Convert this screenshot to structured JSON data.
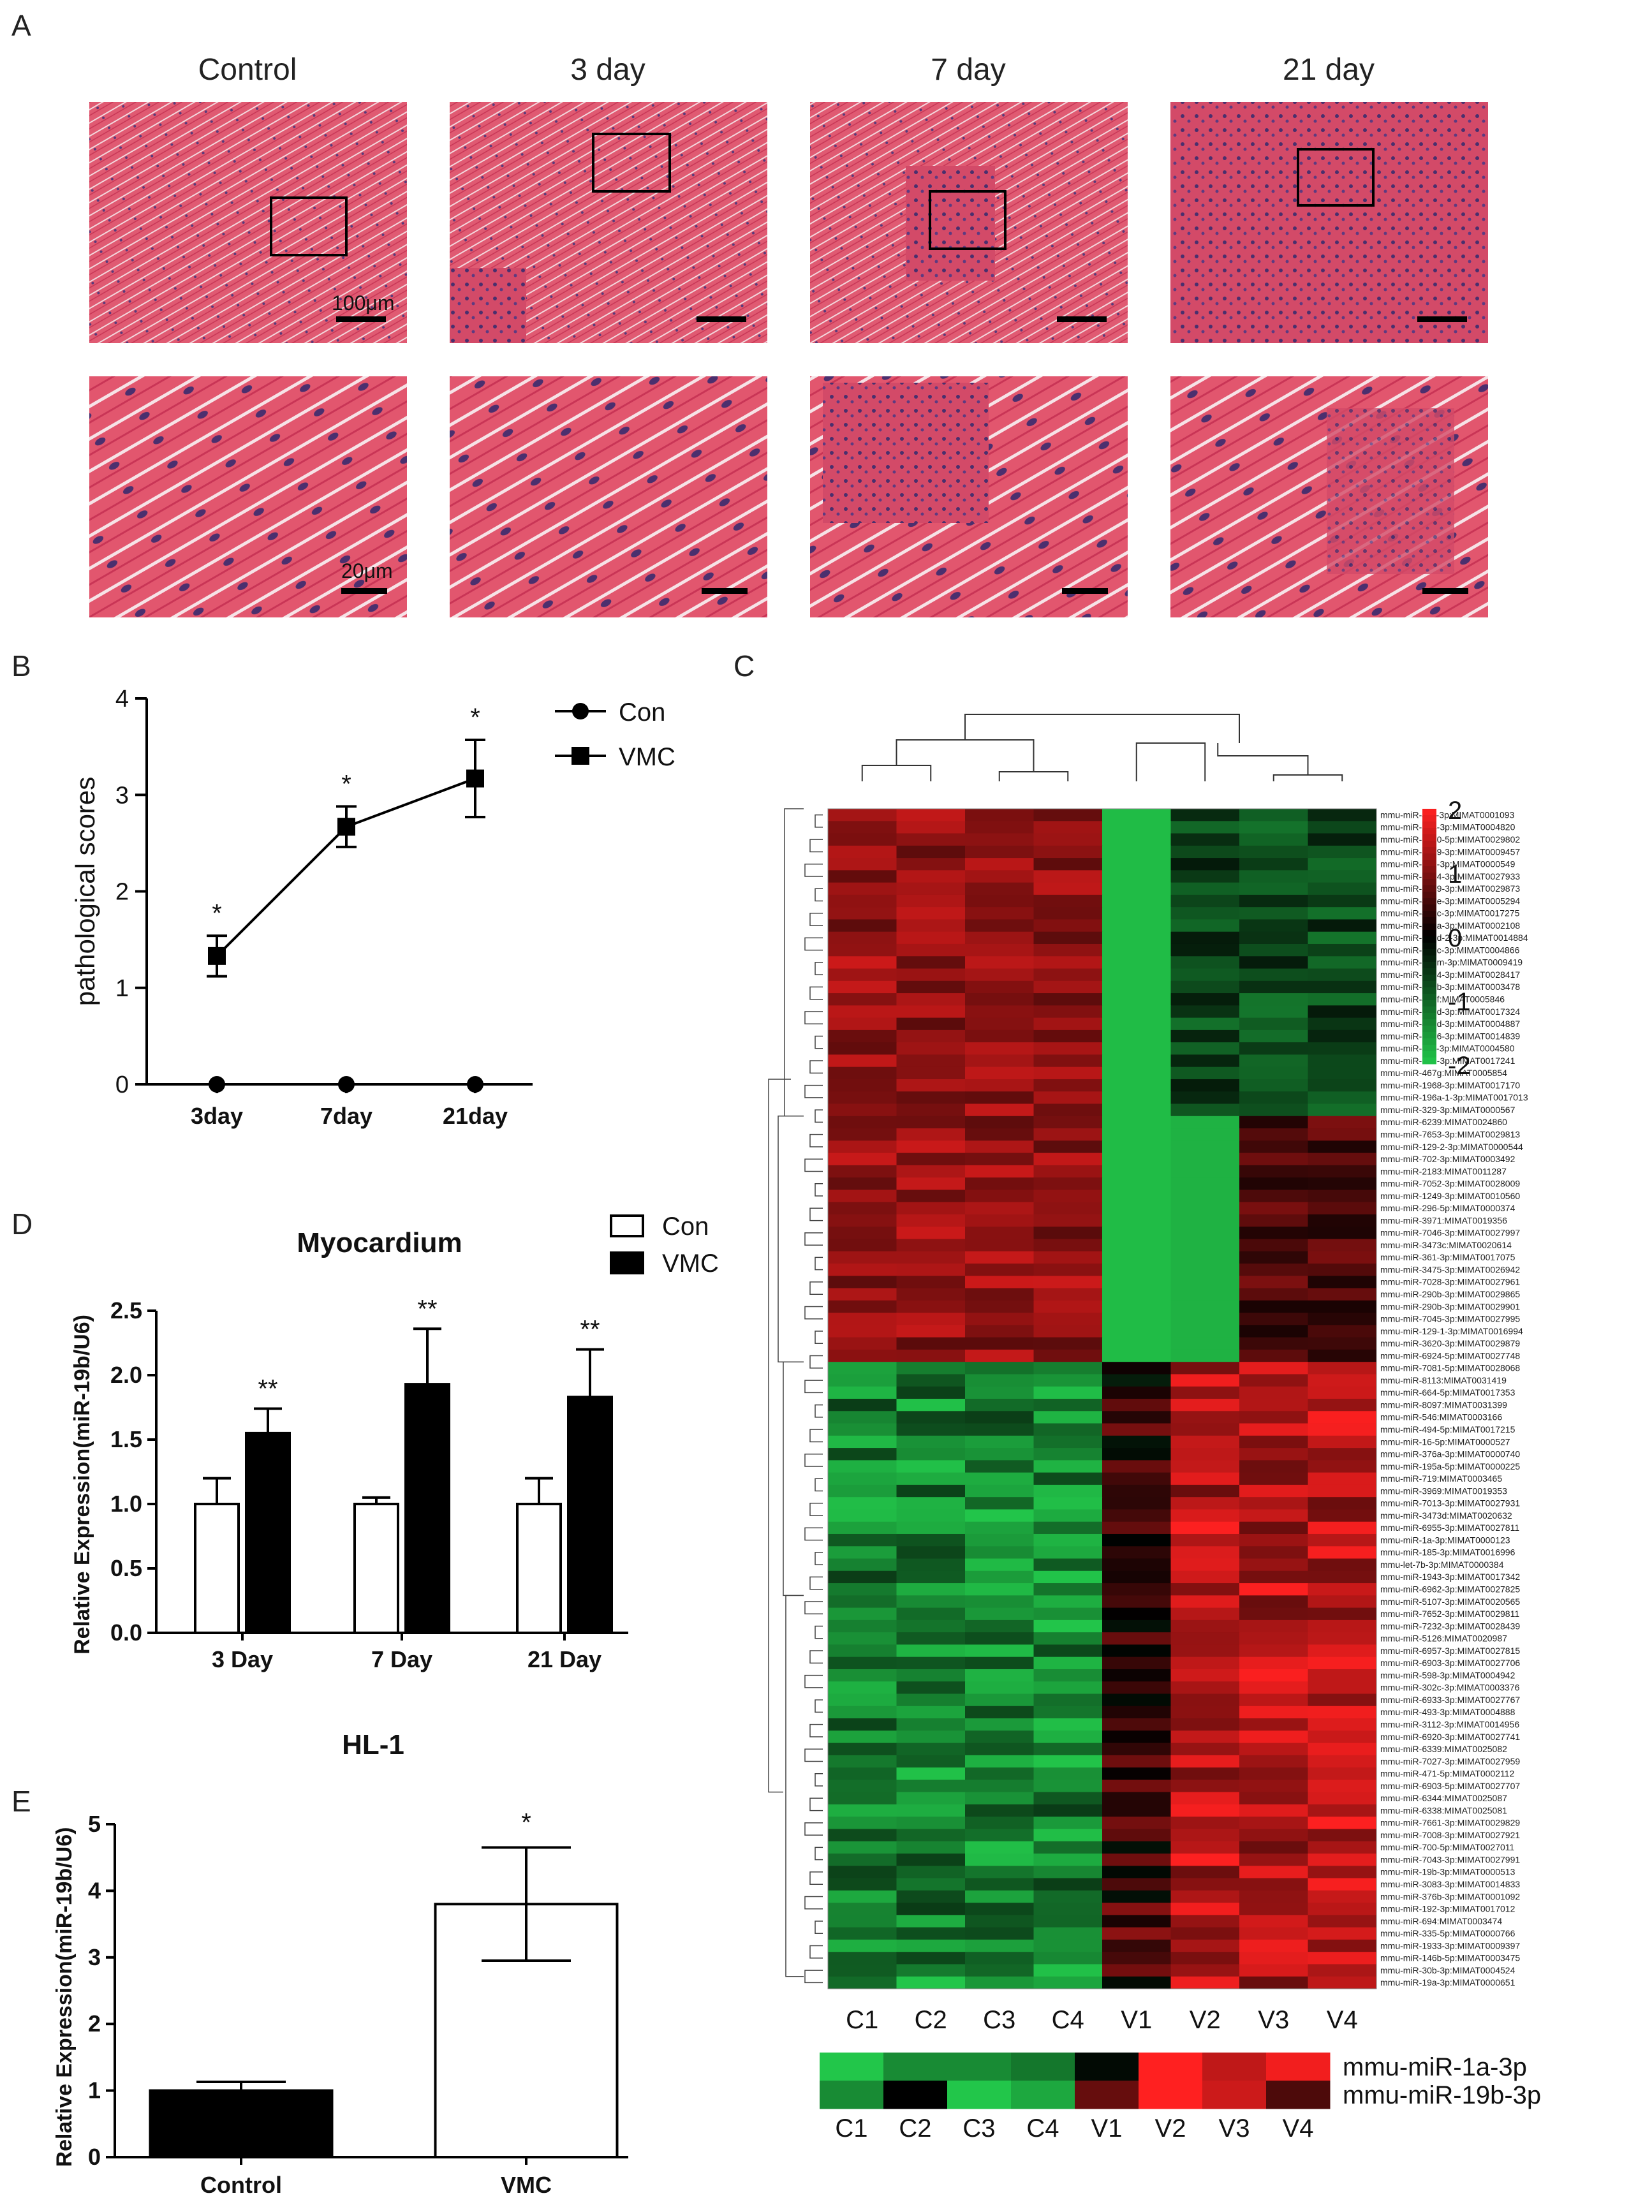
{
  "panel_labels": {
    "a": "A",
    "b": "B",
    "c": "C",
    "d": "D",
    "e": "E"
  },
  "histology": {
    "columns": [
      "Control",
      "3 day",
      "7 day",
      "21 day"
    ],
    "scale_top": "100μm",
    "scale_bottom": "20μm",
    "tissue_color": "#d9465e"
  },
  "chart_data": [
    {
      "type": "line",
      "panel": "B",
      "ylabel": "pathological scores",
      "categories": [
        "3day",
        "7day",
        "21day"
      ],
      "yticks": [
        "0",
        "1",
        "2",
        "3",
        "4"
      ],
      "ylim": [
        0,
        4
      ],
      "series": [
        {
          "name": "Con",
          "marker": "circle",
          "values": [
            0,
            0,
            0
          ],
          "errors": [
            0,
            0,
            0
          ]
        },
        {
          "name": "VMC",
          "marker": "square",
          "values": [
            1.33,
            2.67,
            3.17
          ],
          "errors": [
            0.21,
            0.21,
            0.4
          ]
        }
      ],
      "annotations": [
        "*",
        "*",
        "*"
      ],
      "legend_position": "top-right"
    },
    {
      "type": "bar",
      "panel": "D",
      "title": "Myocardium",
      "ylabel": "Relative Expression(miR-19b/U6)",
      "categories": [
        "3 Day",
        "7 Day",
        "21 Day"
      ],
      "yticks": [
        "0.0",
        "0.5",
        "1.0",
        "1.5",
        "2.0",
        "2.5"
      ],
      "ylim": [
        0,
        2.5
      ],
      "series": [
        {
          "name": "Con",
          "fill": "white",
          "values": [
            1.0,
            1.0,
            1.0
          ],
          "errors": [
            0.2,
            0.05,
            0.2
          ]
        },
        {
          "name": "VMC",
          "fill": "black",
          "values": [
            1.55,
            1.93,
            1.83
          ],
          "errors": [
            0.19,
            0.43,
            0.37
          ]
        }
      ],
      "annotations": [
        "**",
        "**",
        "**"
      ],
      "legend_position": "top-right"
    },
    {
      "type": "bar",
      "panel": "E",
      "title": "HL-1",
      "ylabel": "Relative Expression(miR-19b/U6)",
      "categories": [
        "Control",
        "VMC"
      ],
      "yticks": [
        "0",
        "1",
        "2",
        "3",
        "4",
        "5"
      ],
      "ylim": [
        0,
        5
      ],
      "series": [
        {
          "name": "",
          "values": [
            1.0,
            3.8
          ],
          "errors": [
            0.13,
            0.85
          ],
          "fills": [
            "black",
            "white"
          ]
        }
      ],
      "annotations": [
        "",
        "*"
      ]
    },
    {
      "type": "heatmap",
      "panel": "C",
      "columns": [
        "C1",
        "C2",
        "C3",
        "C4",
        "V1",
        "V2",
        "V3",
        "V4"
      ],
      "scale_ticks": [
        "2",
        "1",
        "0",
        "-1",
        "-2"
      ],
      "colors": {
        "high": "#ff2020",
        "mid": "#000000",
        "low": "#22c64a"
      },
      "rows": [
        "mmu-miR-411-3p:MIMAT0001093",
        "mmu-miR-744-3p:MIMAT0004820",
        "mmu-miR-7650-5p:MIMAT0029802",
        "mmu-miR-1839-3p:MIMAT0009457",
        "mmu-miR-322-3p:MIMAT0000549",
        "mmu-miR-7014-3p:MIMAT0027933",
        "mmu-miR-7679-3p:MIMAT0029873",
        "mmu-miR-467e-3p:MIMAT0005294",
        "mmu-miR-467c-3p:MIMAT0017275",
        "mmu-miR-467a-3p:MIMAT0002108",
        "mmu-miR-669d-2-3p:MIMAT0014884",
        "mmu-miR-297c-3p:MIMAT0004866",
        "mmu-miR-669m-3p:MIMAT0009419",
        "mmu-miR-7224-3p:MIMAT0028417",
        "mmu-miR-467b-3p:MIMAT0003478",
        "mmu-miR-467f:MIMAT0005846",
        "mmu-miR-669d-3p:MIMAT0017324",
        "mmu-miR-467d-3p:MIMAT0004887",
        "mmu-miR-3066-3p:MIMAT0014839",
        "mmu-miR-34c-3p:MIMAT0004580",
        "mmu-miR-672-3p:MIMAT0017241",
        "mmu-miR-467g:MIMAT0005854",
        "mmu-miR-1968-3p:MIMAT0017170",
        "mmu-miR-196a-1-3p:MIMAT0017013",
        "mmu-miR-329-3p:MIMAT0000567",
        "mmu-miR-6239:MIMAT0024860",
        "mmu-miR-7653-3p:MIMAT0029813",
        "mmu-miR-129-2-3p:MIMAT0000544",
        "mmu-miR-702-3p:MIMAT0003492",
        "mmu-miR-2183:MIMAT0011287",
        "mmu-miR-7052-3p:MIMAT0028009",
        "mmu-miR-1249-3p:MIMAT0010560",
        "mmu-miR-296-5p:MIMAT0000374",
        "mmu-miR-3971:MIMAT0019356",
        "mmu-miR-7046-3p:MIMAT0027997",
        "mmu-miR-3473c:MIMAT0020614",
        "mmu-miR-361-3p:MIMAT0017075",
        "mmu-miR-3475-3p:MIMAT0026942",
        "mmu-miR-7028-3p:MIMAT0027961",
        "mmu-miR-290b-3p:MIMAT0029865",
        "mmu-miR-290b-3p:MIMAT0029901",
        "mmu-miR-7045-3p:MIMAT0027995",
        "mmu-miR-129-1-3p:MIMAT0016994",
        "mmu-miR-3620-3p:MIMAT0029879",
        "mmu-miR-6924-5p:MIMAT0027748",
        "mmu-miR-7081-5p:MIMAT0028068",
        "mmu-miR-8113:MIMAT0031419",
        "mmu-miR-664-5p:MIMAT0017353",
        "mmu-miR-8097:MIMAT0031399",
        "mmu-miR-546:MIMAT0003166",
        "mmu-miR-494-5p:MIMAT0017215",
        "mmu-miR-16-5p:MIMAT0000527",
        "mmu-miR-376a-3p:MIMAT0000740",
        "mmu-miR-195a-5p:MIMAT0000225",
        "mmu-miR-719:MIMAT0003465",
        "mmu-miR-3969:MIMAT0019353",
        "mmu-miR-7013-3p:MIMAT0027931",
        "mmu-miR-3473d:MIMAT0020632",
        "mmu-miR-6955-3p:MIMAT0027811",
        "mmu-miR-1a-3p:MIMAT0000123",
        "mmu-miR-185-3p:MIMAT0016996",
        "mmu-let-7b-3p:MIMAT0000384",
        "mmu-miR-1943-3p:MIMAT0017342",
        "mmu-miR-6962-3p:MIMAT0027825",
        "mmu-miR-5107-3p:MIMAT0020565",
        "mmu-miR-7652-3p:MIMAT0029811",
        "mmu-miR-7232-3p:MIMAT0028439",
        "mmu-miR-5126:MIMAT0020987",
        "mmu-miR-6957-3p:MIMAT0027815",
        "mmu-miR-6903-3p:MIMAT0027706",
        "mmu-miR-598-3p:MIMAT0004942",
        "mmu-miR-302c-3p:MIMAT0003376",
        "mmu-miR-6933-3p:MIMAT0027767",
        "mmu-miR-493-3p:MIMAT0004888",
        "mmu-miR-3112-3p:MIMAT0014956",
        "mmu-miR-6920-3p:MIMAT0027741",
        "mmu-miR-6339:MIMAT0025082",
        "mmu-miR-7027-3p:MIMAT0027959",
        "mmu-miR-471-5p:MIMAT0002112",
        "mmu-miR-6903-5p:MIMAT0027707",
        "mmu-miR-6344:MIMAT0025087",
        "mmu-miR-6338:MIMAT0025081",
        "mmu-miR-7661-3p:MIMAT0029829",
        "mmu-miR-7008-3p:MIMAT0027921",
        "mmu-miR-700-5p:MIMAT0027011",
        "mmu-miR-7043-3p:MIMAT0027991",
        "mmu-miR-19b-3p:MIMAT0000513",
        "mmu-miR-3083-3p:MIMAT0014833",
        "mmu-miR-376b-3p:MIMAT0001092",
        "mmu-miR-192-3p:MIMAT0017012",
        "mmu-miR-694:MIMAT0003474",
        "mmu-miR-335-5p:MIMAT0000766",
        "mmu-miR-1933-3p:MIMAT0009397",
        "mmu-miR-146b-5p:MIMAT0003475",
        "mmu-miR-30b-3p:MIMAT0004524",
        "mmu-miR-19a-3p:MIMAT0000651"
      ],
      "top_block_rows": 45,
      "bottom_strip": {
        "rows": [
          "mmu-miR-1a-3p",
          "mmu-miR-19b-3p"
        ],
        "columns": [
          "C1",
          "C2",
          "C3",
          "C4",
          "V1",
          "V2",
          "V3",
          "V4"
        ]
      }
    }
  ]
}
